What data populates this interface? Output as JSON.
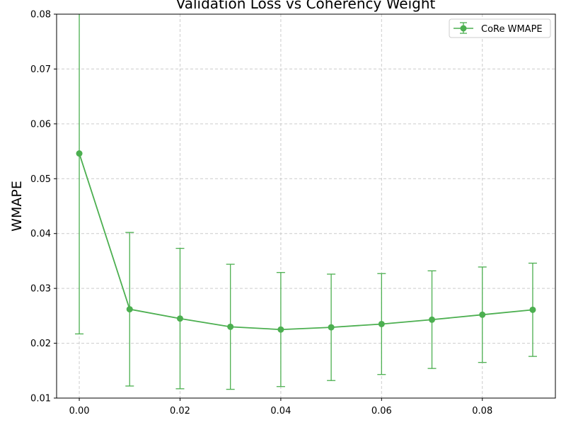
{
  "chart_data": {
    "type": "line",
    "title": "Validation Loss vs Coherency Weight",
    "xlabel": "",
    "ylabel": "WMAPE",
    "xlim": [
      -0.0045,
      0.0945
    ],
    "ylim": [
      0.01,
      0.08
    ],
    "x_ticks": [
      "0.00",
      "0.02",
      "0.04",
      "0.06",
      "0.08"
    ],
    "y_ticks": [
      "0.01",
      "0.02",
      "0.03",
      "0.04",
      "0.05",
      "0.06",
      "0.07",
      "0.08"
    ],
    "grid": true,
    "legend_position": "top-right",
    "series": [
      {
        "name": "CoRe WMAPE",
        "color": "#4caf50",
        "x": [
          0.0,
          0.01,
          0.02,
          0.03,
          0.04,
          0.05,
          0.06,
          0.07,
          0.08,
          0.09
        ],
        "y": [
          0.0546,
          0.0262,
          0.0245,
          0.023,
          0.0225,
          0.0229,
          0.0235,
          0.0243,
          0.0252,
          0.0261
        ],
        "err": [
          0.0329,
          0.014,
          0.0128,
          0.0114,
          0.0104,
          0.0097,
          0.0092,
          0.0089,
          0.0087,
          0.0085
        ]
      }
    ]
  }
}
